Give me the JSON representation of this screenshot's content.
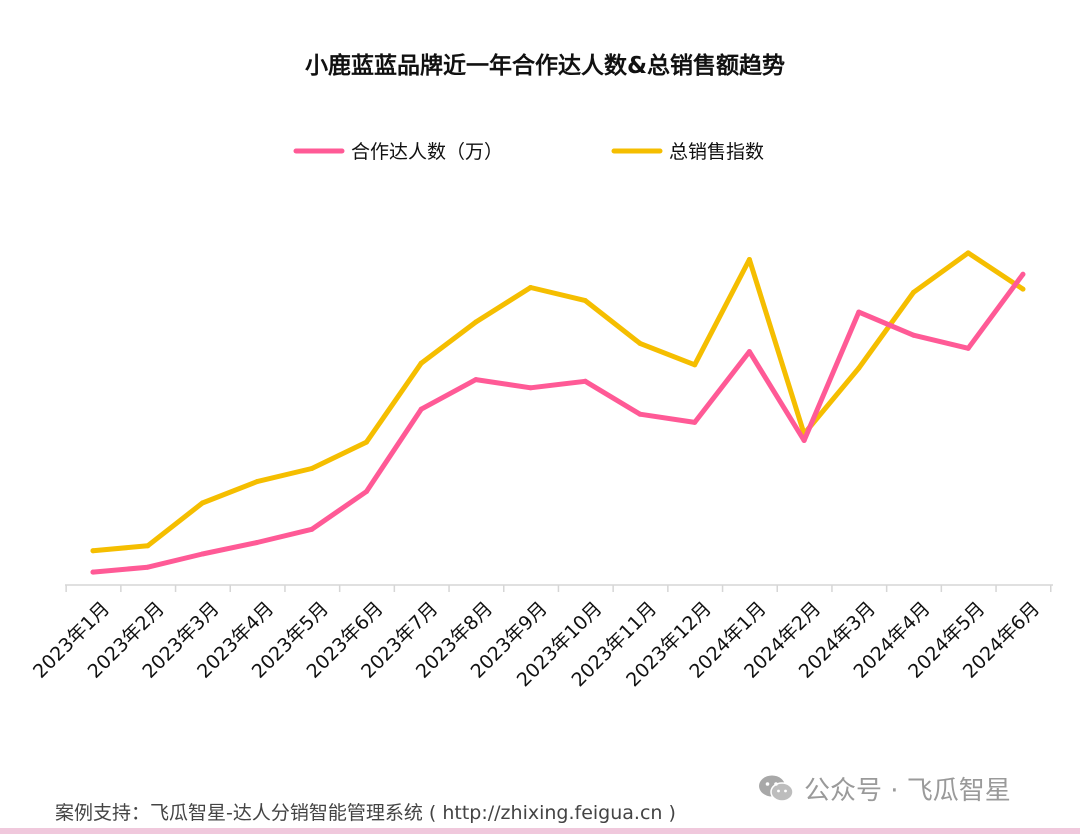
{
  "chart_data": {
    "type": "line",
    "title": "小鹿蓝蓝品牌近一年合作达人数&总销售额趋势",
    "categories": [
      "2023年1月",
      "2023年2月",
      "2023年3月",
      "2023年4月",
      "2023年5月",
      "2023年6月",
      "2023年7月",
      "2023年8月",
      "2023年9月",
      "2023年10月",
      "2023年11月",
      "2023年12月",
      "2024年1月",
      "2024年2月",
      "2024年3月",
      "2024年4月",
      "2024年5月",
      "2024年6月"
    ],
    "series": [
      {
        "name": "合作达人数（万）",
        "color": "#ff5a96",
        "values": [
          6,
          9,
          17,
          24,
          32,
          55,
          105,
          123,
          118,
          122,
          102,
          97,
          140,
          86,
          164,
          150,
          142,
          187
        ]
      },
      {
        "name": "总销售指数",
        "color": "#f5be00",
        "values": [
          19,
          22,
          48,
          61,
          69,
          85,
          133,
          158,
          179,
          171,
          145,
          132,
          196,
          90,
          130,
          176,
          200,
          178
        ]
      }
    ],
    "ylim": [
      0,
      220
    ],
    "grid": false,
    "legend": "top-center"
  },
  "footer": {
    "text": "案例支持：飞瓜智星-达人分销智能管理系统 ( http://zhixing.feigua.cn )"
  },
  "watermark": {
    "text": "公众号 · 飞瓜智星",
    "icon": "wechat-icon"
  }
}
